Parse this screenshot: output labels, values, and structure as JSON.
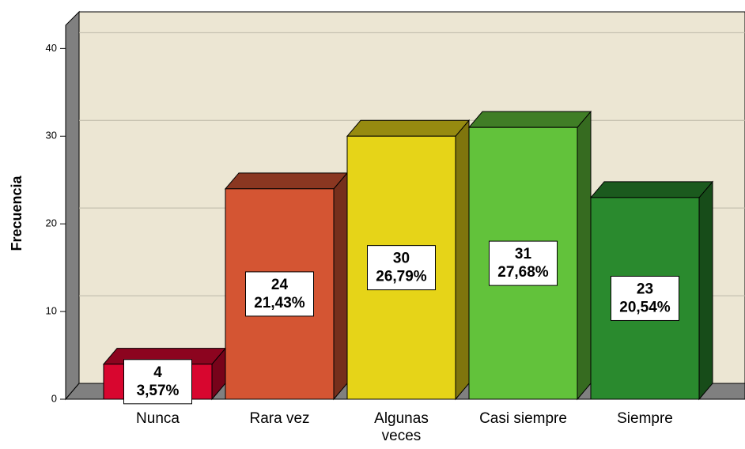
{
  "chart_data": {
    "type": "bar3d",
    "y_label": "Frecuencia",
    "categories": [
      "Nunca",
      "Rara vez",
      "Algunas veces",
      "Casi siempre",
      "Siempre"
    ],
    "values": [
      4,
      24,
      30,
      31,
      23
    ],
    "percents": [
      3.57,
      21.43,
      26.79,
      27.68,
      20.54
    ],
    "percent_labels": [
      "3,57%",
      "21,43%",
      "26,79%",
      "27,68%",
      "20,54%"
    ],
    "colors": [
      "#d8062f",
      "#d45533",
      "#e6d418",
      "#62c23b",
      "#2a8a2e"
    ],
    "ylim": [
      0,
      44
    ],
    "yticks": [
      0,
      10,
      20,
      30,
      40
    ],
    "grid": true
  }
}
